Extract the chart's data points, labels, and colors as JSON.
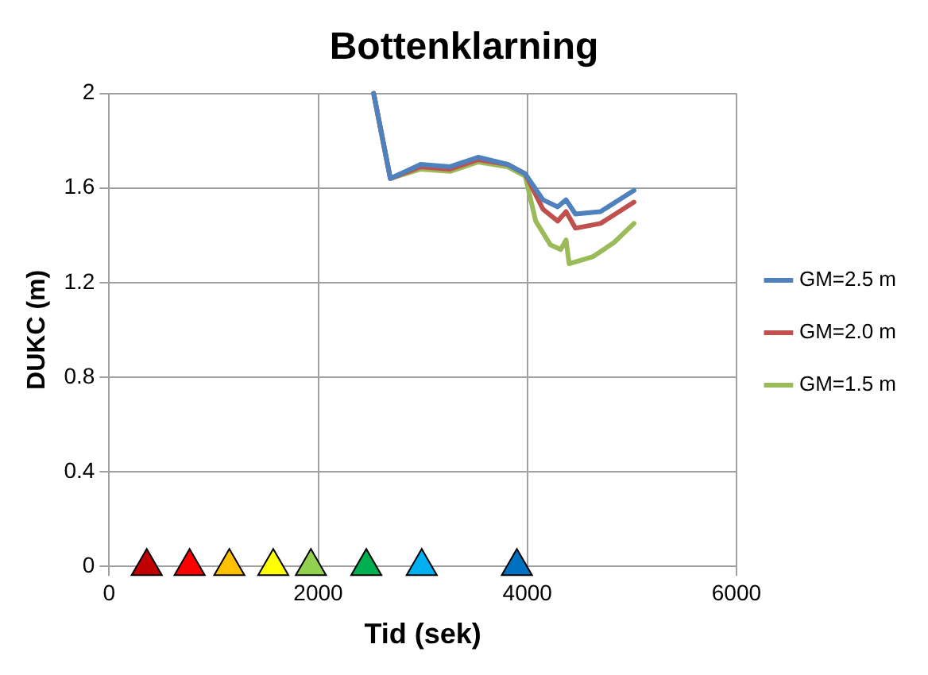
{
  "chart_data": {
    "type": "line",
    "title": "Bottenklarning",
    "xlabel": "Tid (sek)",
    "ylabel": "DUKC (m)",
    "xlim": [
      0,
      6000
    ],
    "xticks": [
      0,
      2000,
      4000,
      6000
    ],
    "ylim": [
      0,
      2
    ],
    "yticks": [
      0,
      0.4,
      0.8,
      1.2,
      1.6,
      2
    ],
    "grid": true,
    "legend": "right",
    "marker": "none",
    "line_style": "solid",
    "series": [
      {
        "name": "GM=2.5 m",
        "color": "#4f81bd",
        "x": [
          2530,
          2690,
          2980,
          3260,
          3530,
          3810,
          3980,
          4150,
          4290,
          4370,
          4460,
          4700,
          5020
        ],
        "values": [
          2,
          1.64,
          1.7,
          1.69,
          1.73,
          1.7,
          1.66,
          1.55,
          1.52,
          1.55,
          1.49,
          1.5,
          1.59
        ]
      },
      {
        "name": "GM=2.0 m",
        "color": "#c0504d",
        "x": [
          2530,
          2690,
          2980,
          3260,
          3530,
          3810,
          3980,
          4150,
          4290,
          4370,
          4460,
          4700,
          5020
        ],
        "values": [
          2,
          1.64,
          1.69,
          1.68,
          1.72,
          1.7,
          1.66,
          1.51,
          1.46,
          1.5,
          1.43,
          1.45,
          1.54
        ]
      },
      {
        "name": "GM=1.5 m",
        "color": "#9bbb59",
        "x": [
          2530,
          2690,
          2980,
          3260,
          3530,
          3810,
          3980,
          4080,
          4220,
          4320,
          4370,
          4400,
          4630,
          4830,
          5020
        ],
        "values": [
          2,
          1.64,
          1.68,
          1.67,
          1.71,
          1.69,
          1.65,
          1.46,
          1.36,
          1.34,
          1.38,
          1.28,
          1.31,
          1.37,
          1.45
        ]
      },
      {
        "type": "scatter",
        "marker": "triangle",
        "x": [
          360,
          770,
          1150,
          1570,
          1930,
          2460,
          2990,
          3900
        ],
        "values": [
          0,
          0,
          0,
          0,
          0,
          0,
          0,
          0
        ],
        "colors": [
          "#c00000",
          "#ff0000",
          "#ffc000",
          "#ffff00",
          "#92d050",
          "#00b050",
          "#00b0f0",
          "#0070c0"
        ]
      }
    ]
  }
}
